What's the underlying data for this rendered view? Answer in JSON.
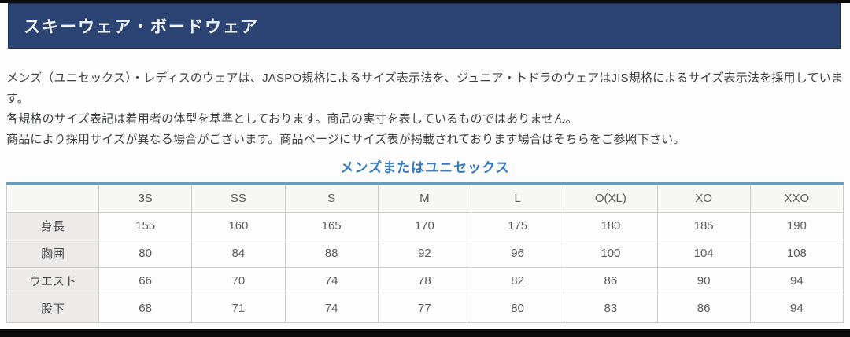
{
  "page": {
    "title": "スキーウェア・ボードウェア"
  },
  "intro": {
    "line1": "メンズ（ユニセックス）・レディスのウェアは、JASPO規格によるサイズ表示法を、ジュニア・トドラのウェアはJIS規格によるサイズ表示法を採用しています。",
    "line2": "各規格のサイズ表記は着用者の体型を基準としております。商品の実寸を表しているものではありません。",
    "line3": "商品により採用サイズが異なる場合がございます。商品ページにサイズ表が掲載されております場合はそちらをご参照下さい。"
  },
  "section": {
    "heading": "メンズまたはユニセックス"
  },
  "size_table": {
    "columns": [
      "",
      "3S",
      "SS",
      "S",
      "M",
      "L",
      "O(XL)",
      "XO",
      "XXO"
    ],
    "rows": [
      {
        "label": "身長",
        "values": [
          "155",
          "160",
          "165",
          "170",
          "175",
          "180",
          "185",
          "190"
        ]
      },
      {
        "label": "胸囲",
        "values": [
          "80",
          "84",
          "88",
          "92",
          "96",
          "100",
          "104",
          "108"
        ]
      },
      {
        "label": "ウエスト",
        "values": [
          "66",
          "70",
          "74",
          "78",
          "82",
          "86",
          "90",
          "94"
        ]
      },
      {
        "label": "股下",
        "values": [
          "68",
          "71",
          "74",
          "77",
          "80",
          "83",
          "86",
          "94"
        ]
      }
    ]
  },
  "colors": {
    "header_bg": "#2b4473",
    "header_text": "#f2f3f5",
    "section_heading": "#3779be",
    "table_top_border": "#6b9cb8",
    "row_label_bg": "#ecebe9",
    "cell_border": "#cccccc",
    "body_text": "#3d3f42"
  }
}
